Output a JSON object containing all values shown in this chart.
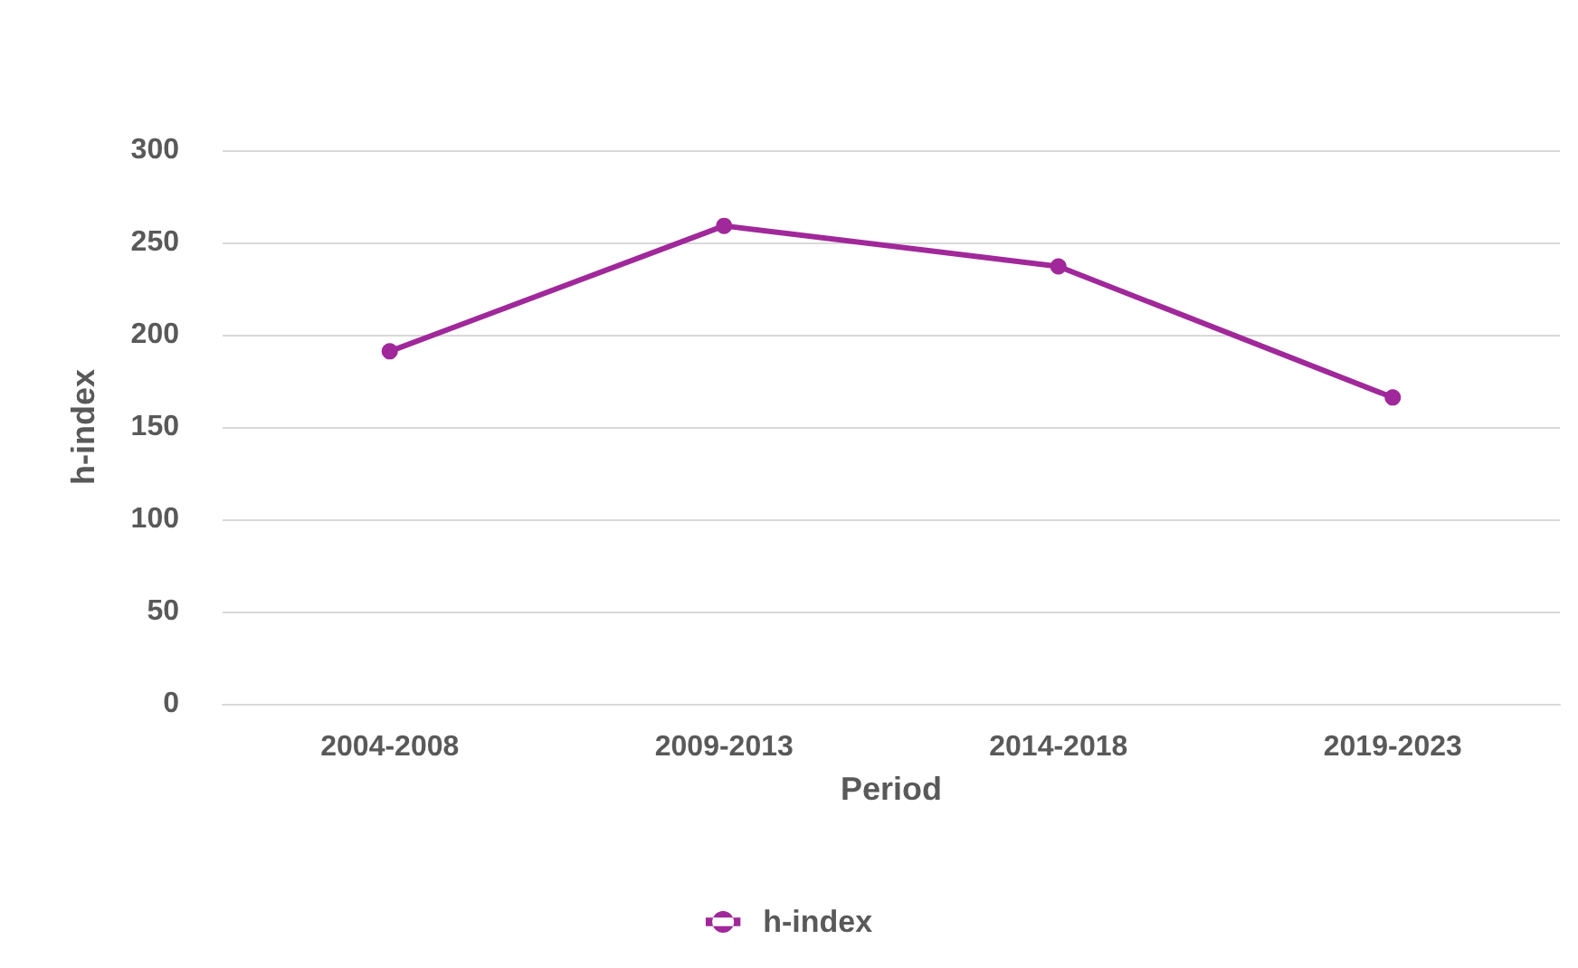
{
  "chart_data": {
    "type": "line",
    "xlabel": "Period",
    "ylabel": "h-index",
    "categories": [
      "2004-2008",
      "2009-2013",
      "2014-2018",
      "2019-2023"
    ],
    "series": [
      {
        "name": "h-index",
        "color": "#a0289a",
        "values": [
          191,
          259,
          237,
          166
        ]
      }
    ],
    "ylim": [
      0,
      300
    ],
    "yticks": [
      0,
      50,
      100,
      150,
      200,
      250,
      300
    ],
    "grid": "y",
    "legend": "bottom",
    "marker": "circle",
    "line_style": "solid"
  }
}
